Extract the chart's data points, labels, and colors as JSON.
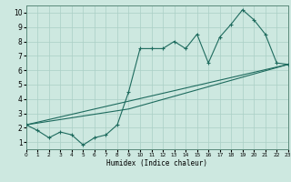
{
  "xlabel": "Humidex (Indice chaleur)",
  "bg_color": "#cde8e0",
  "line_color": "#1e6b5e",
  "grid_color": "#aacfc5",
  "xlim": [
    0,
    23
  ],
  "ylim": [
    0.5,
    10.5
  ],
  "xticks": [
    0,
    1,
    2,
    3,
    4,
    5,
    6,
    7,
    8,
    9,
    10,
    11,
    12,
    13,
    14,
    15,
    16,
    17,
    18,
    19,
    20,
    21,
    22,
    23
  ],
  "yticks": [
    1,
    2,
    3,
    4,
    5,
    6,
    7,
    8,
    9,
    10
  ],
  "line1_x": [
    0,
    1,
    2,
    3,
    4,
    5,
    6,
    7,
    8,
    9,
    10,
    11,
    12,
    13,
    14,
    15,
    16,
    17,
    18,
    19,
    20,
    21,
    22,
    23
  ],
  "line1_y": [
    2.2,
    1.8,
    1.3,
    1.7,
    1.5,
    0.8,
    1.3,
    1.5,
    2.2,
    4.5,
    7.5,
    7.5,
    7.5,
    8.0,
    7.5,
    8.5,
    6.5,
    8.3,
    9.2,
    10.2,
    9.5,
    8.5,
    6.5,
    6.4
  ],
  "line2_x": [
    0,
    23
  ],
  "line2_y": [
    2.2,
    6.4
  ],
  "line3_x": [
    0,
    9,
    23
  ],
  "line3_y": [
    2.2,
    3.3,
    6.4
  ]
}
